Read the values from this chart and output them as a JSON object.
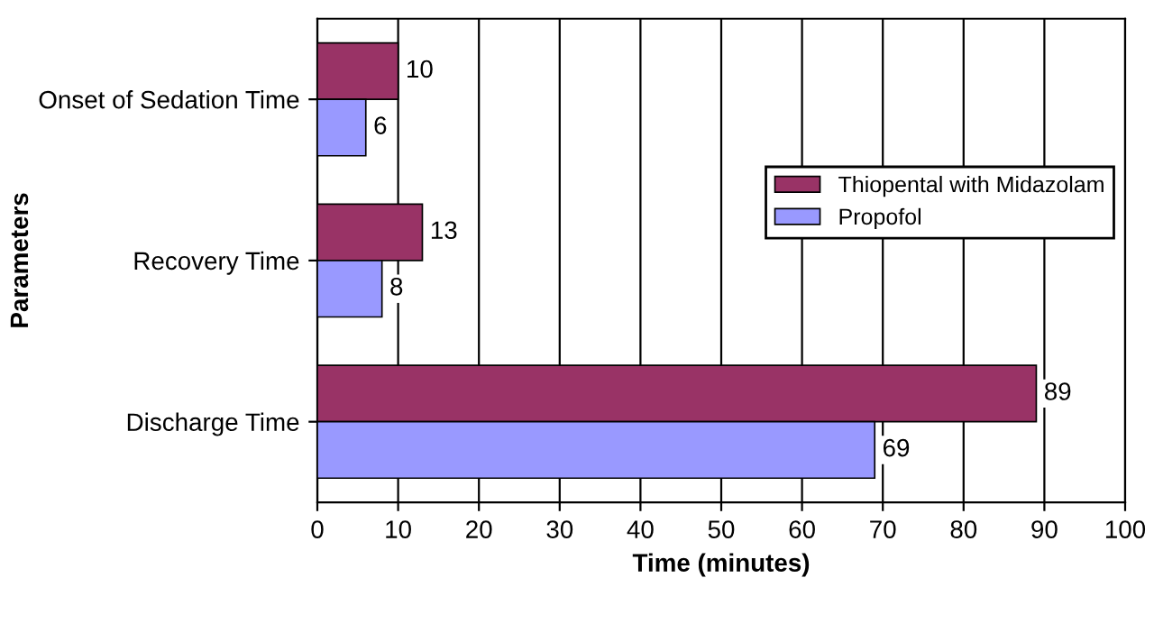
{
  "chart_data": {
    "type": "bar",
    "orientation": "horizontal",
    "xlabel": "Time (minutes)",
    "ylabel": "Parameters",
    "categories": [
      "Onset of Sedation Time",
      "Recovery Time",
      "Discharge Time"
    ],
    "series": [
      {
        "name": "Thiopental with Midazolam",
        "color": "#993366",
        "values": [
          10,
          13,
          89
        ]
      },
      {
        "name": "Propofol",
        "color": "#9999ff",
        "values": [
          6,
          8,
          69
        ]
      }
    ],
    "xlim": [
      0,
      100
    ],
    "xticks": [
      0,
      10,
      20,
      30,
      40,
      50,
      60,
      70,
      80,
      90,
      100
    ],
    "grid": "x",
    "legend": "right",
    "data_labels": true
  }
}
